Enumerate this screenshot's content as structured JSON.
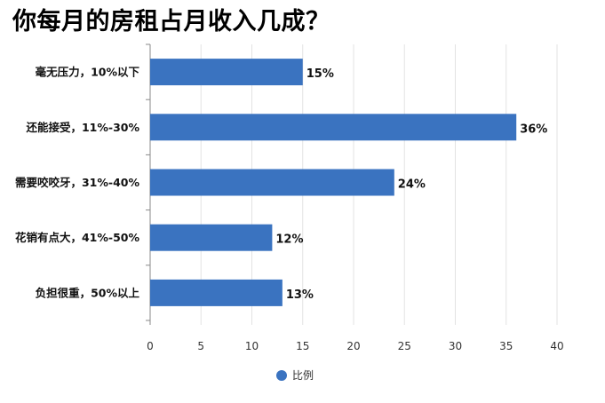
{
  "chart_data": {
    "type": "bar",
    "orientation": "horizontal",
    "title": "你每月的房租占月收入几成？",
    "categories": [
      "毫无压力，10%以下",
      "还能接受，11%-30%",
      "需要咬咬牙，31%-40%",
      "花销有点大，41%-50%",
      "负担很重，50%以上"
    ],
    "series": [
      {
        "name": "比例",
        "values": [
          15,
          36,
          24,
          12,
          13
        ]
      }
    ],
    "value_labels": [
      "15%",
      "36%",
      "24%",
      "12%",
      "13%"
    ],
    "xlim": [
      0,
      40
    ],
    "x_ticks": [
      0,
      5,
      10,
      15,
      20,
      25,
      30,
      35,
      40
    ],
    "grid": "vertical",
    "legend_position": "bottom",
    "colors": {
      "bar": "#3a73c0",
      "grid": "#e3e3e3",
      "axis": "#8a8a8a"
    }
  }
}
